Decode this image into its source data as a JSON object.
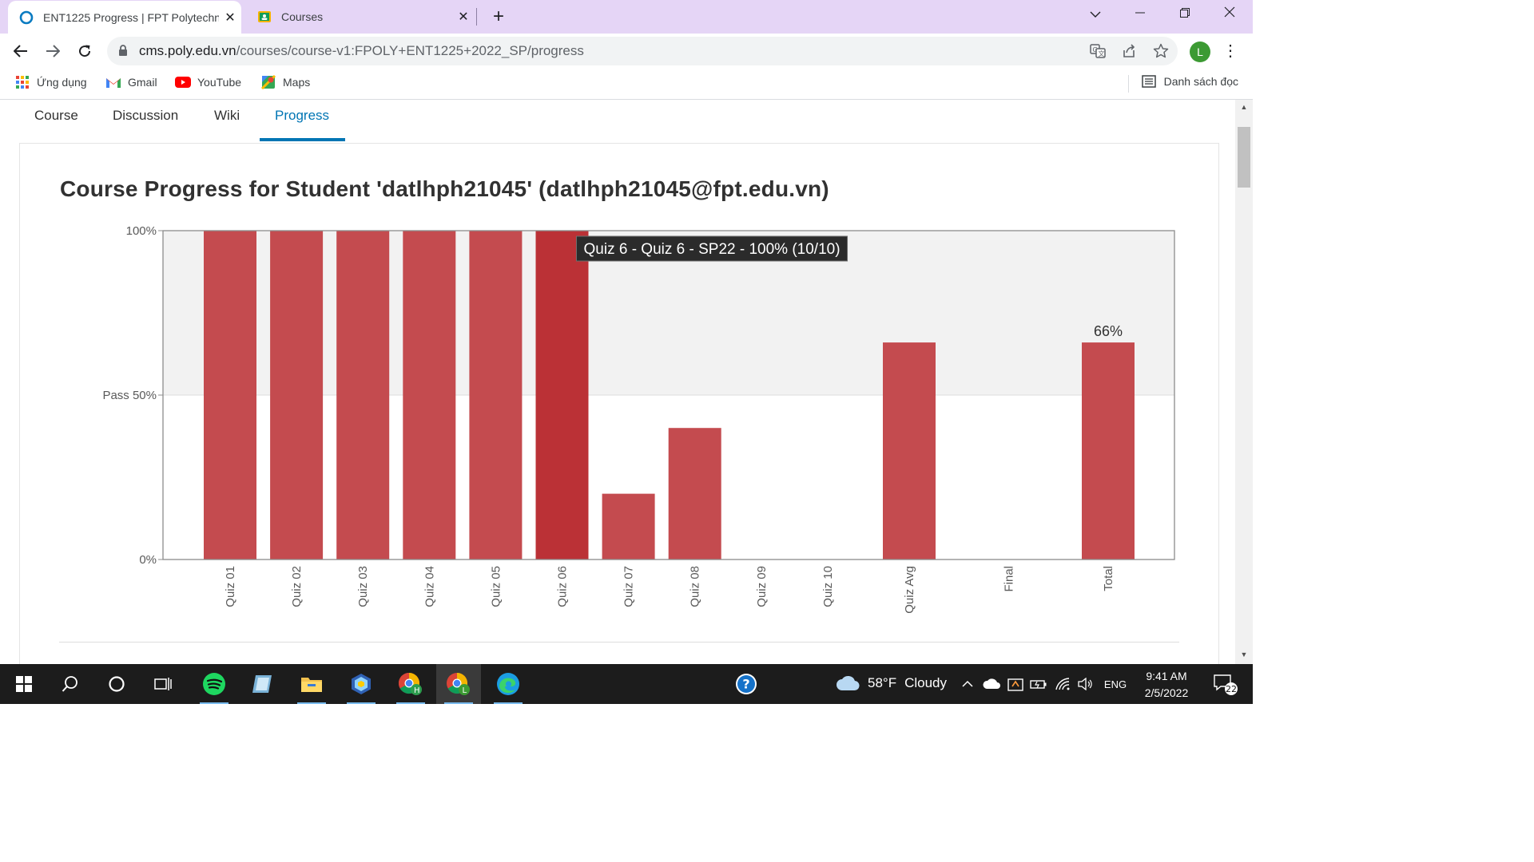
{
  "browser": {
    "tabs": [
      {
        "title": "ENT1225 Progress | FPT Polytechnic",
        "icon": "edx-circle-icon",
        "active": true
      },
      {
        "title": "Courses",
        "icon": "classroom-icon",
        "active": false
      }
    ],
    "new_tab": "+",
    "window_controls": {
      "dropdown": "⌵",
      "minimize": "—",
      "restore": "❐",
      "close": "✕"
    },
    "url_host": "cms.poly.edu.vn",
    "url_path": "/courses/course-v1:FPOLY+ENT1225+2022_SP/progress",
    "profile_initial": "L",
    "profile_color": "#3c9a33"
  },
  "bookmarks": {
    "items": [
      {
        "label": "Ứng dụng",
        "icon": "apps-grid-icon"
      },
      {
        "label": "Gmail",
        "icon": "gmail-icon"
      },
      {
        "label": "YouTube",
        "icon": "youtube-icon"
      },
      {
        "label": "Maps",
        "icon": "maps-icon"
      }
    ],
    "reading_list": "Danh sách đọc"
  },
  "course_nav": {
    "tabs": [
      "Course",
      "Discussion",
      "Wiki",
      "Progress"
    ],
    "active": "Progress"
  },
  "page": {
    "heading": "Course Progress for Student 'datlhph21045' (datlhph21045@fpt.edu.vn)"
  },
  "colors": {
    "bar": "#c44b4f",
    "bar_highlight": "#bb3136",
    "accent": "#0075b4",
    "pass_band": "#f2f2f2"
  },
  "chart_data": {
    "type": "bar",
    "categories": [
      "Quiz 01",
      "Quiz 02",
      "Quiz 03",
      "Quiz 04",
      "Quiz 05",
      "Quiz 06",
      "Quiz 07",
      "Quiz 08",
      "Quiz 09",
      "Quiz 10",
      "Quiz Avg",
      "Final",
      "Total"
    ],
    "values": [
      100,
      100,
      100,
      100,
      100,
      100,
      20,
      40,
      0,
      0,
      66,
      0,
      66
    ],
    "ylim": [
      0,
      100
    ],
    "y_ticks": [
      {
        "value": 0,
        "label": "0%"
      },
      {
        "value": 50,
        "label": "Pass 50%"
      },
      {
        "value": 100,
        "label": "100%"
      }
    ],
    "data_labels": [
      {
        "category": "Total",
        "label": "66%"
      }
    ],
    "highlighted": "Quiz 06",
    "tooltip": "Quiz 6 - Quiz 6 - SP22 - 100% (10/10)"
  },
  "taskbar": {
    "apps": [
      "windows-start-icon",
      "search-icon",
      "cortana-icon",
      "task-view-icon",
      "spotify-icon",
      "notepad-icon",
      "file-explorer-icon",
      "virtualbox-icon",
      "chrome-profile-h-icon",
      "chrome-profile-l-icon",
      "edge-icon"
    ],
    "help_icon": "?",
    "weather": {
      "temp": "58°F",
      "condition": "Cloudy"
    },
    "tray": {
      "language": "ENG"
    },
    "clock": {
      "time": "9:41 AM",
      "date": "2/5/2022"
    },
    "notifications": "22"
  }
}
